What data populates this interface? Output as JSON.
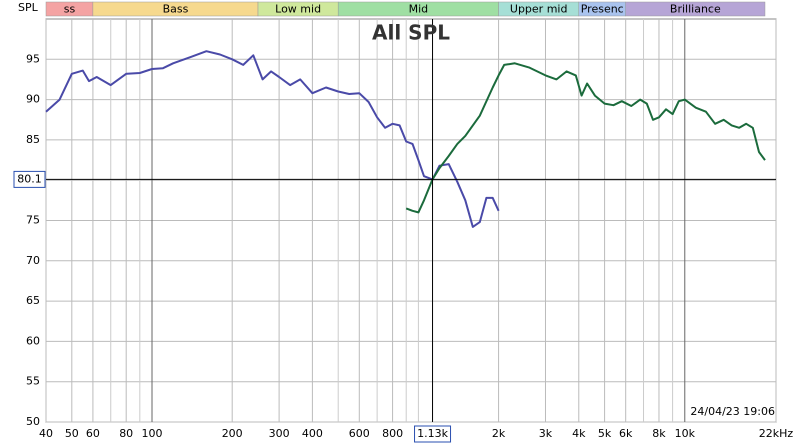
{
  "chart_data": {
    "type": "line",
    "title": "All SPL",
    "ylabel": "SPL",
    "timestamp": "24/04/23 19:06",
    "log_x": true,
    "grid": true,
    "xlim": [
      40,
      22000
    ],
    "ylim": [
      50,
      100
    ],
    "yticks": [
      50,
      55,
      60,
      65,
      70,
      75,
      80,
      85,
      90,
      95
    ],
    "xticks": [
      40,
      50,
      60,
      80,
      100,
      200,
      300,
      400,
      600,
      800,
      {
        "value": 2000,
        "label": "2k"
      },
      {
        "value": 3000,
        "label": "3k"
      },
      {
        "value": 4000,
        "label": "4k"
      },
      {
        "value": 5000,
        "label": "5k"
      },
      {
        "value": 6000,
        "label": "6k"
      },
      {
        "value": 8000,
        "label": "8k"
      },
      {
        "value": 10000,
        "label": "10k"
      },
      {
        "value": 22000,
        "label": "22kHz"
      }
    ],
    "xgrid": [
      70,
      90,
      500,
      700,
      900,
      1000,
      7000,
      9000
    ],
    "bands": [
      {
        "name": "ss",
        "from": 40,
        "to": 60,
        "color": "#f4a3a3"
      },
      {
        "name": "Bass",
        "from": 60,
        "to": 250,
        "color": "#f6d98e"
      },
      {
        "name": "Low mid",
        "from": 250,
        "to": 500,
        "color": "#cfe89c"
      },
      {
        "name": "Mid",
        "from": 500,
        "to": 2000,
        "color": "#9fdfa3"
      },
      {
        "name": "Upper mid",
        "from": 2000,
        "to": 4000,
        "color": "#a6dfd6"
      },
      {
        "name": "Presenc",
        "from": 4000,
        "to": 6000,
        "color": "#a9c3ee"
      },
      {
        "name": "Brilliance",
        "from": 6000,
        "to": 20000,
        "color": "#b6a5d6"
      }
    ],
    "cursor": {
      "x": {
        "value": 1130,
        "label": "1.13k"
      },
      "y": 80.1
    },
    "series": [
      {
        "color": "#4a4aa8",
        "x": [
          40,
          45,
          50,
          55,
          58,
          62,
          70,
          80,
          90,
          100,
          110,
          120,
          140,
          160,
          180,
          200,
          220,
          240,
          260,
          280,
          300,
          330,
          360,
          400,
          450,
          500,
          550,
          600,
          650,
          700,
          750,
          800,
          850,
          900,
          950,
          1000,
          1050,
          1130,
          1200,
          1300,
          1400,
          1500,
          1600,
          1700,
          1800,
          1900,
          2000
        ],
        "values": [
          88.5,
          90,
          93.2,
          93.6,
          92.3,
          92.8,
          91.8,
          93.2,
          93.3,
          93.8,
          93.9,
          94.5,
          95.3,
          96.0,
          95.6,
          95.0,
          94.3,
          95.5,
          92.5,
          93.5,
          92.8,
          91.8,
          92.5,
          90.8,
          91.5,
          91.0,
          90.7,
          90.8,
          89.7,
          87.8,
          86.5,
          87.0,
          86.8,
          84.8,
          84.5,
          82.5,
          80.5,
          80.1,
          81.8,
          82.0,
          79.8,
          77.5,
          74.2,
          74.8,
          77.8,
          77.8,
          76.2
        ]
      },
      {
        "color": "#1b6b3c",
        "x": [
          900,
          950,
          1000,
          1050,
          1130,
          1200,
          1300,
          1400,
          1500,
          1700,
          1900,
          2000,
          2100,
          2300,
          2600,
          3000,
          3300,
          3600,
          3900,
          4100,
          4300,
          4600,
          5000,
          5400,
          5800,
          6300,
          6800,
          7200,
          7600,
          8000,
          8500,
          9000,
          9500,
          10000,
          11000,
          12000,
          13000,
          14000,
          15000,
          16000,
          17000,
          18000,
          19000,
          20000
        ],
        "values": [
          76.5,
          76.2,
          76.0,
          77.5,
          80.1,
          81.5,
          83.0,
          84.5,
          85.5,
          88.0,
          91.5,
          93.0,
          94.3,
          94.5,
          94.0,
          93.0,
          92.5,
          93.5,
          93.0,
          90.5,
          92.0,
          90.5,
          89.5,
          89.3,
          89.8,
          89.2,
          90.0,
          89.5,
          87.5,
          87.8,
          88.8,
          88.2,
          89.8,
          90.0,
          89.0,
          88.5,
          87.0,
          87.5,
          86.8,
          86.5,
          87.0,
          86.5,
          83.5,
          82.5
        ]
      }
    ]
  }
}
